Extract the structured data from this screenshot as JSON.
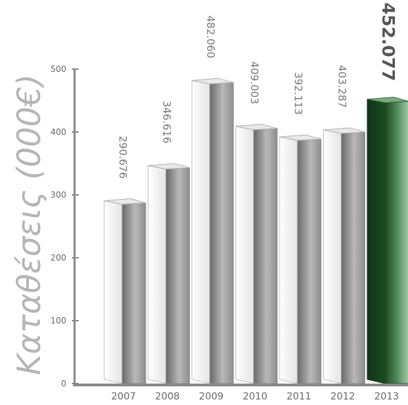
{
  "chart_data": {
    "type": "bar",
    "ylabel": "Καταθέσεις (000€)",
    "categories": [
      "2007",
      "2008",
      "2009",
      "2010",
      "2011",
      "2012",
      "2013"
    ],
    "values": [
      290.676,
      346.616,
      482.06,
      409.003,
      392.113,
      403.287,
      452.077
    ],
    "value_labels": [
      "290.676",
      "346.616",
      "482.060",
      "409.003",
      "392.113",
      "403.287",
      "452.077"
    ],
    "yticks": [
      "0",
      "100",
      "200",
      "300",
      "400",
      "500"
    ],
    "ylim": [
      0,
      500
    ],
    "highlight_index": 6,
    "colors": {
      "bar_default": "#9a9a9a",
      "bar_highlight": "#2f6b35",
      "axis": "#888888",
      "tick_text": "#666666",
      "ylabel": "#b5b5b5",
      "value_label": "#777777",
      "highlight_label": "#555555"
    },
    "bar_style": "3d",
    "grid": false
  }
}
